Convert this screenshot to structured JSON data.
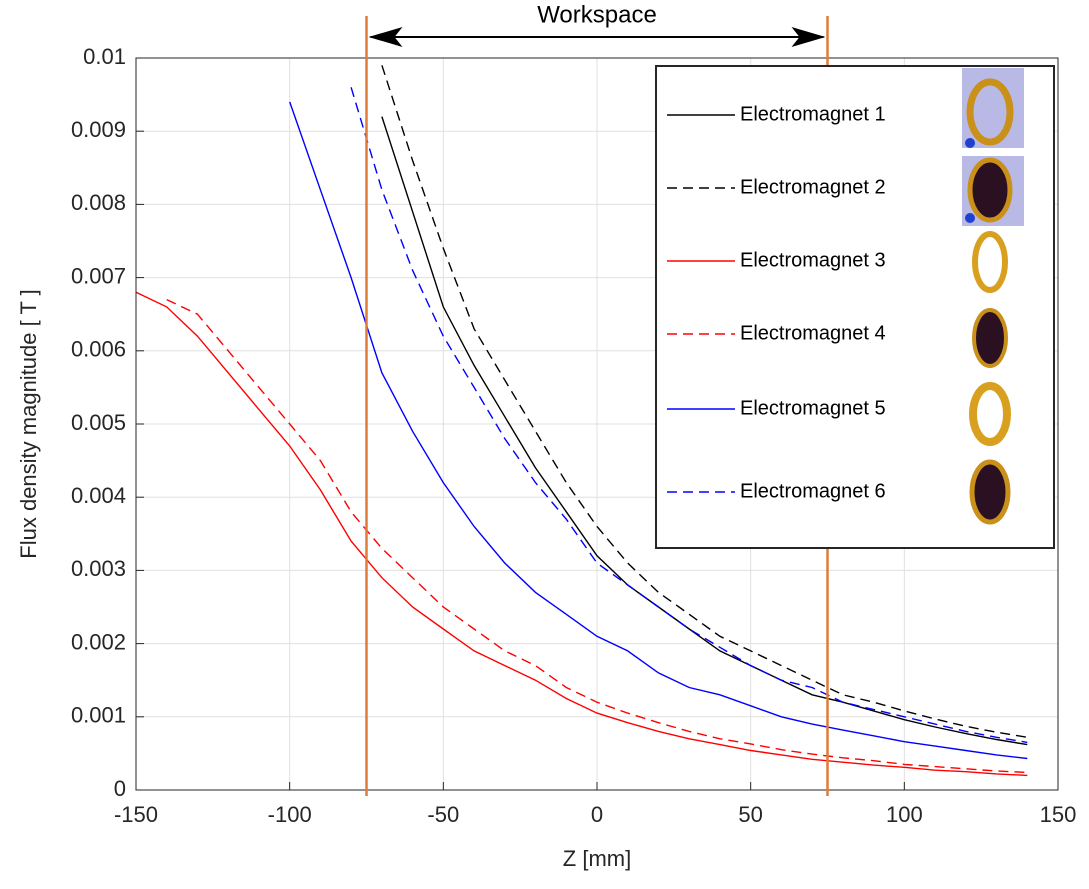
{
  "chart_data": {
    "type": "line",
    "xlabel": "Z [mm]",
    "ylabel": "Flux density magnitude [ T ]",
    "x": [
      -150,
      -140,
      -130,
      -120,
      -110,
      -100,
      -90,
      -80,
      -70,
      -60,
      -50,
      -40,
      -30,
      -20,
      -10,
      0,
      10,
      20,
      30,
      40,
      50,
      60,
      70,
      80,
      90,
      100,
      110,
      120,
      130,
      140
    ],
    "series": [
      {
        "name": "Electromagnet 1",
        "color": "#000000",
        "style": "solid",
        "values": [
          null,
          null,
          null,
          null,
          null,
          null,
          null,
          null,
          0.0092,
          0.0079,
          0.0066,
          0.0058,
          0.0051,
          0.0044,
          0.0038,
          0.0032,
          0.0028,
          0.0025,
          0.0022,
          0.0019,
          0.0017,
          0.0015,
          0.0013,
          0.0012,
          0.00108,
          0.00096,
          0.00086,
          0.00077,
          0.00069,
          0.00062
        ]
      },
      {
        "name": "Electromagnet 2",
        "color": "#000000",
        "style": "dashed",
        "values": [
          null,
          null,
          null,
          null,
          null,
          null,
          null,
          null,
          0.0099,
          0.0086,
          0.0074,
          0.0063,
          0.0056,
          0.0049,
          0.0042,
          0.0036,
          0.0031,
          0.0027,
          0.0024,
          0.0021,
          0.0019,
          0.0017,
          0.0015,
          0.0013,
          0.0012,
          0.00108,
          0.00097,
          0.00087,
          0.00079,
          0.00072
        ]
      },
      {
        "name": "Electromagnet 3",
        "color": "#ff0000",
        "style": "solid",
        "values": [
          0.0068,
          0.0066,
          0.0062,
          0.0057,
          0.0052,
          0.0047,
          0.0041,
          0.0034,
          0.0029,
          0.0025,
          0.0022,
          0.0019,
          0.0017,
          0.0015,
          0.00125,
          0.00105,
          0.00092,
          0.0008,
          0.0007,
          0.00062,
          0.00054,
          0.00048,
          0.00042,
          0.00038,
          0.00034,
          0.00031,
          0.00027,
          0.00025,
          0.00022,
          0.0002
        ]
      },
      {
        "name": "Electromagnet 4",
        "color": "#ff0000",
        "style": "dashed",
        "values": [
          null,
          0.0067,
          0.0065,
          0.006,
          0.0055,
          0.005,
          0.0045,
          0.0038,
          0.0033,
          0.0029,
          0.0025,
          0.0022,
          0.0019,
          0.0017,
          0.0014,
          0.0012,
          0.00105,
          0.00092,
          0.0008,
          0.0007,
          0.00063,
          0.00055,
          0.00049,
          0.00044,
          0.0004,
          0.00035,
          0.00032,
          0.00029,
          0.00026,
          0.00024
        ]
      },
      {
        "name": "Electromagnet 5",
        "color": "#0000ff",
        "style": "solid",
        "values": [
          null,
          null,
          null,
          null,
          null,
          0.0094,
          0.0082,
          0.007,
          0.0057,
          0.0049,
          0.0042,
          0.0036,
          0.0031,
          0.0027,
          0.0024,
          0.0021,
          0.0019,
          0.0016,
          0.0014,
          0.0013,
          0.00115,
          0.001,
          0.0009,
          0.00082,
          0.00074,
          0.00066,
          0.0006,
          0.00054,
          0.00048,
          0.00043
        ]
      },
      {
        "name": "Electromagnet 6",
        "color": "#0000ff",
        "style": "dashed",
        "values": [
          null,
          null,
          null,
          null,
          null,
          null,
          null,
          0.0096,
          0.0082,
          0.0071,
          0.0062,
          0.0055,
          0.0048,
          0.0042,
          0.0037,
          0.0031,
          0.0028,
          0.0025,
          0.0022,
          0.00195,
          0.0017,
          0.0015,
          0.0014,
          0.0012,
          0.0011,
          0.001,
          0.0009,
          0.0008,
          0.00072,
          0.00065
        ]
      }
    ],
    "xlim": [
      -150,
      150
    ],
    "xticks": [
      -150,
      -100,
      -50,
      0,
      50,
      100,
      150
    ],
    "ylim": [
      0,
      0.01
    ],
    "yticks": [
      0,
      0.001,
      0.002,
      0.003,
      0.004,
      0.005,
      0.006,
      0.007,
      0.008,
      0.009,
      0.01
    ],
    "grid": true,
    "legend": "upper right",
    "workspace": {
      "label": "Workspace",
      "bounds": [
        -75,
        75
      ],
      "color": "#e07b39"
    }
  }
}
